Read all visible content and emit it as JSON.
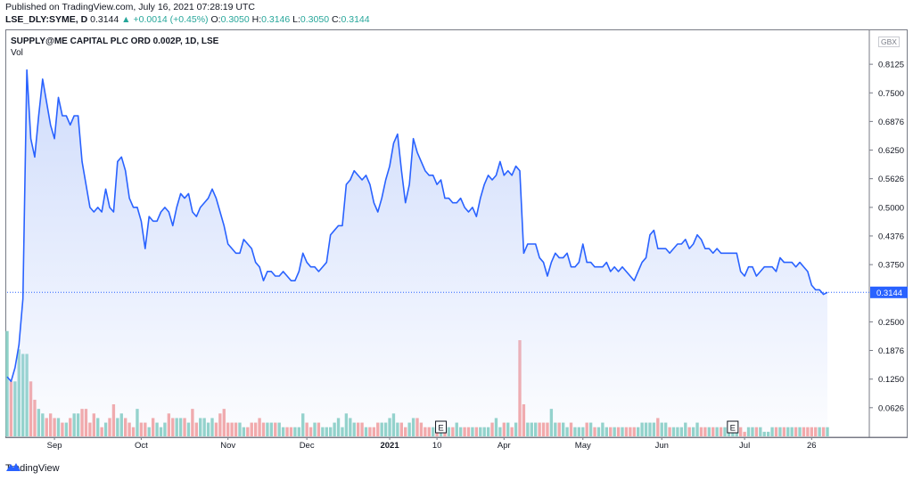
{
  "header": {
    "published": "Published on TradingView.com, July 16, 2021 07:28:19 UTC",
    "symbol": "LSE_DLY:SYME, D",
    "price": "0.3144",
    "change": "▲ +0.0014 (+0.45%)",
    "o_label": "O:",
    "o_value": "0.3050",
    "h_label": "H:",
    "h_value": "0.3146",
    "l_label": "L:",
    "l_value": "0.3050",
    "c_label": "C:",
    "c_value": "0.3144"
  },
  "legend": {
    "title": "SUPPLY@ME CAPITAL PLC ORD 0.002P, 1D, LSE",
    "volume": "Vol"
  },
  "currency": "GBX",
  "last_price_label": "0.3144",
  "footer": {
    "brand": "TradingView",
    "icon": "tradingview-logo-icon"
  },
  "colors": {
    "line": "#2962ff",
    "fill": "#c7d6fb",
    "up": "#26a69a",
    "down": "#ef5350",
    "vol_up": "#8fd2c8",
    "vol_down": "#f4a6a6"
  },
  "earnings_marker": "E",
  "chart_data": {
    "type": "area",
    "ylim": [
      0,
      0.875
    ],
    "price_ticks": [
      "0.8125",
      "0.7500",
      "0.6876",
      "0.6250",
      "0.5626",
      "0.5000",
      "0.4376",
      "0.3750",
      "0.2500",
      "0.1876",
      "0.1250",
      "0.0626"
    ],
    "price_tick_values": [
      0.8125,
      0.75,
      0.6876,
      0.625,
      0.5626,
      0.5,
      0.4376,
      0.375,
      0.25,
      0.1876,
      0.125,
      0.0626
    ],
    "x_ticks": [
      {
        "label": "Sep",
        "index": 12,
        "bold": false
      },
      {
        "label": "Oct",
        "index": 34,
        "bold": false
      },
      {
        "label": "Nov",
        "index": 56,
        "bold": false
      },
      {
        "label": "Dec",
        "index": 76,
        "bold": false
      },
      {
        "label": "2021",
        "index": 97,
        "bold": true
      },
      {
        "label": "10",
        "index": 109,
        "bold": false
      },
      {
        "label": "Apr",
        "index": 126,
        "bold": false
      },
      {
        "label": "May",
        "index": 146,
        "bold": false
      },
      {
        "label": "Jun",
        "index": 166,
        "bold": false
      },
      {
        "label": "Jul",
        "index": 187,
        "bold": false
      },
      {
        "label": "26",
        "index": 204,
        "bold": false
      }
    ],
    "earnings_indices": [
      110,
      184
    ],
    "last_value": 0.3144,
    "series": [
      {
        "name": "SYME close",
        "values": [
          0.13,
          0.12,
          0.15,
          0.2,
          0.3,
          0.8,
          0.65,
          0.61,
          0.7,
          0.78,
          0.73,
          0.68,
          0.65,
          0.74,
          0.7,
          0.7,
          0.68,
          0.7,
          0.7,
          0.6,
          0.55,
          0.5,
          0.49,
          0.5,
          0.49,
          0.54,
          0.5,
          0.49,
          0.6,
          0.61,
          0.58,
          0.52,
          0.5,
          0.5,
          0.47,
          0.41,
          0.48,
          0.47,
          0.47,
          0.49,
          0.5,
          0.49,
          0.46,
          0.5,
          0.53,
          0.52,
          0.53,
          0.49,
          0.48,
          0.5,
          0.51,
          0.52,
          0.54,
          0.52,
          0.49,
          0.46,
          0.42,
          0.41,
          0.4,
          0.4,
          0.43,
          0.42,
          0.41,
          0.38,
          0.37,
          0.34,
          0.36,
          0.36,
          0.35,
          0.35,
          0.36,
          0.35,
          0.34,
          0.34,
          0.36,
          0.4,
          0.38,
          0.37,
          0.37,
          0.36,
          0.37,
          0.38,
          0.44,
          0.45,
          0.46,
          0.46,
          0.55,
          0.56,
          0.58,
          0.57,
          0.56,
          0.57,
          0.55,
          0.51,
          0.49,
          0.52,
          0.56,
          0.59,
          0.64,
          0.66,
          0.58,
          0.51,
          0.55,
          0.65,
          0.62,
          0.6,
          0.58,
          0.57,
          0.57,
          0.55,
          0.56,
          0.52,
          0.52,
          0.51,
          0.51,
          0.52,
          0.5,
          0.49,
          0.5,
          0.48,
          0.52,
          0.55,
          0.57,
          0.56,
          0.57,
          0.6,
          0.57,
          0.58,
          0.57,
          0.59,
          0.58,
          0.4,
          0.42,
          0.42,
          0.42,
          0.39,
          0.38,
          0.35,
          0.38,
          0.4,
          0.39,
          0.39,
          0.4,
          0.37,
          0.37,
          0.38,
          0.42,
          0.38,
          0.38,
          0.37,
          0.37,
          0.37,
          0.38,
          0.36,
          0.37,
          0.36,
          0.37,
          0.36,
          0.35,
          0.34,
          0.36,
          0.38,
          0.39,
          0.44,
          0.45,
          0.41,
          0.41,
          0.41,
          0.4,
          0.41,
          0.42,
          0.42,
          0.43,
          0.41,
          0.42,
          0.44,
          0.43,
          0.41,
          0.41,
          0.4,
          0.41,
          0.4,
          0.4,
          0.4,
          0.4,
          0.4,
          0.36,
          0.35,
          0.37,
          0.37,
          0.35,
          0.36,
          0.37,
          0.37,
          0.37,
          0.36,
          0.39,
          0.38,
          0.38,
          0.38,
          0.37,
          0.38,
          0.37,
          0.36,
          0.33,
          0.32,
          0.32,
          0.31,
          0.3144
        ]
      },
      {
        "name": "Volume",
        "values": [
          0.23,
          0.12,
          0.12,
          0.19,
          0.18,
          0.18,
          0.12,
          0.08,
          0.06,
          0.05,
          0.04,
          0.05,
          0.04,
          0.04,
          0.03,
          0.03,
          0.04,
          0.05,
          0.05,
          0.06,
          0.06,
          0.03,
          0.05,
          0.04,
          0.02,
          0.03,
          0.04,
          0.07,
          0.04,
          0.05,
          0.04,
          0.03,
          0.02,
          0.06,
          0.03,
          0.03,
          0.02,
          0.04,
          0.03,
          0.02,
          0.03,
          0.05,
          0.04,
          0.04,
          0.04,
          0.04,
          0.03,
          0.06,
          0.03,
          0.04,
          0.04,
          0.03,
          0.04,
          0.03,
          0.05,
          0.06,
          0.03,
          0.03,
          0.03,
          0.03,
          0.02,
          0.02,
          0.03,
          0.03,
          0.04,
          0.03,
          0.03,
          0.03,
          0.03,
          0.03,
          0.02,
          0.02,
          0.02,
          0.02,
          0.02,
          0.05,
          0.03,
          0.02,
          0.03,
          0.03,
          0.02,
          0.02,
          0.02,
          0.03,
          0.04,
          0.02,
          0.05,
          0.04,
          0.03,
          0.03,
          0.03,
          0.02,
          0.02,
          0.02,
          0.03,
          0.03,
          0.03,
          0.04,
          0.05,
          0.03,
          0.03,
          0.02,
          0.03,
          0.04,
          0.04,
          0.03,
          0.02,
          0.02,
          0.02,
          0.02,
          0.02,
          0.02,
          0.02,
          0.02,
          0.03,
          0.02,
          0.02,
          0.02,
          0.02,
          0.02,
          0.02,
          0.02,
          0.02,
          0.03,
          0.04,
          0.02,
          0.03,
          0.03,
          0.02,
          0.03,
          0.21,
          0.07,
          0.03,
          0.03,
          0.03,
          0.03,
          0.03,
          0.03,
          0.06,
          0.03,
          0.03,
          0.03,
          0.02,
          0.03,
          0.02,
          0.02,
          0.02,
          0.03,
          0.03,
          0.02,
          0.02,
          0.03,
          0.02,
          0.02,
          0.02,
          0.02,
          0.02,
          0.02,
          0.02,
          0.02,
          0.02,
          0.03,
          0.03,
          0.03,
          0.03,
          0.04,
          0.03,
          0.03,
          0.02,
          0.02,
          0.02,
          0.02,
          0.03,
          0.02,
          0.02,
          0.03,
          0.02,
          0.02,
          0.02,
          0.02,
          0.02,
          0.02,
          0.02,
          0.02,
          0.01,
          0.02,
          0.02,
          0.01,
          0.02,
          0.02,
          0.02,
          0.02,
          0.01,
          0.01,
          0.02,
          0.02,
          0.02,
          0.02,
          0.02,
          0.02,
          0.02,
          0.02,
          0.02,
          0.02,
          0.02,
          0.02,
          0.02,
          0.02,
          0.02
        ]
      }
    ]
  }
}
